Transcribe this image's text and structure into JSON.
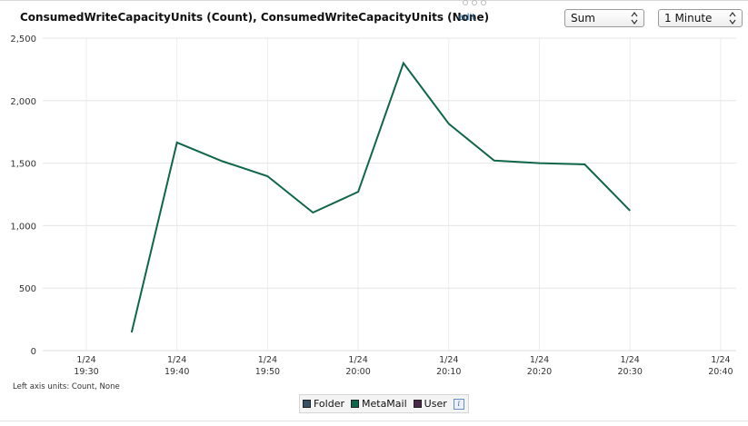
{
  "header": {
    "title": "ConsumedWriteCapacityUnits (Count), ConsumedWriteCapacityUnits (None)",
    "edit_label": "edit",
    "statistic": "Sum",
    "period": "1 Minute"
  },
  "footnote": "Left axis units: Count, None",
  "legend": {
    "items": [
      {
        "label": "Folder",
        "color": "#3a5064"
      },
      {
        "label": "MetaMail",
        "color": "#10664a"
      },
      {
        "label": "User",
        "color": "#4a2848"
      }
    ],
    "info_icon": "info-icon"
  },
  "chart_data": {
    "type": "line",
    "x_ticks": [
      {
        "date": "1/24",
        "time": "19:30"
      },
      {
        "date": "1/24",
        "time": "19:40"
      },
      {
        "date": "1/24",
        "time": "19:50"
      },
      {
        "date": "1/24",
        "time": "20:00"
      },
      {
        "date": "1/24",
        "time": "20:10"
      },
      {
        "date": "1/24",
        "time": "20:20"
      },
      {
        "date": "1/24",
        "time": "20:30"
      },
      {
        "date": "1/24",
        "time": "20:40"
      }
    ],
    "y_ticks": [
      "0",
      "500",
      "1,000",
      "1,500",
      "2,000",
      "2,500"
    ],
    "ylim": [
      0,
      2500
    ],
    "xlim": [
      "19:30",
      "20:40"
    ],
    "grid": true,
    "series": [
      {
        "name": "MetaMail",
        "color": "#10664a",
        "x": [
          "19:35",
          "19:40",
          "19:45",
          "19:50",
          "19:55",
          "20:00",
          "20:05",
          "20:10",
          "20:15",
          "20:20",
          "20:25",
          "20:30"
        ],
        "y": [
          145,
          1665,
          1515,
          1395,
          1105,
          1270,
          2300,
          1815,
          1520,
          1500,
          1490,
          1120
        ]
      }
    ]
  }
}
